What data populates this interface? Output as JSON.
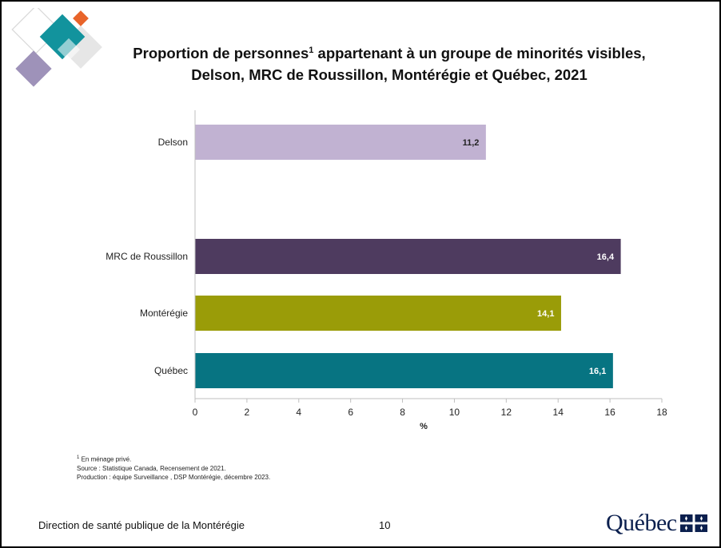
{
  "chart_data": {
    "type": "bar",
    "orientation": "horizontal",
    "title": "Proportion de personnes¹ appartenant à un groupe de minorités visibles, Delson, MRC de Roussillon, Montérégie et Québec, 2021",
    "title_line1": "Proportion de personnes",
    "title_sup": "1",
    "title_line1_rest": " appartenant à un groupe de minorités visibles,",
    "title_line2": "Delson, MRC de Roussillon, Montérégie et Québec, 2021",
    "categories": [
      "Delson",
      "MRC de Roussillon",
      "Montérégie",
      "Québec"
    ],
    "values": [
      11.2,
      16.4,
      14.1,
      16.1
    ],
    "value_labels": [
      "11,2",
      "16,4",
      "14,1",
      "16,1"
    ],
    "colors": [
      "#c1b2d2",
      "#4e3b5f",
      "#9a9c08",
      "#077482"
    ],
    "label_colors": [
      "#222222",
      "#ffffff",
      "#ffffff",
      "#ffffff"
    ],
    "xlabel": "%",
    "xlim": [
      0,
      18
    ],
    "xticks": [
      0,
      2,
      4,
      6,
      8,
      10,
      12,
      14,
      16,
      18
    ],
    "grid": false,
    "legend": "none"
  },
  "notes": {
    "footnote_sup": "1",
    "footnote": " En ménage privé.",
    "source": "Source : Statistique Canada, Recensement de 2021.",
    "production": "Production : équipe Surveillance , DSP Montérégie, décembre 2023."
  },
  "footer": {
    "organization": "Direction de santé publique de la Montérégie",
    "page_number": "10",
    "brand": "Québec"
  },
  "colors": {
    "decor_teal": "#12939d",
    "decor_orange": "#e8642a",
    "decor_purple": "#9e92b9",
    "decor_grey": "#e6e6e6",
    "brand_blue": "#0b1f4e"
  }
}
